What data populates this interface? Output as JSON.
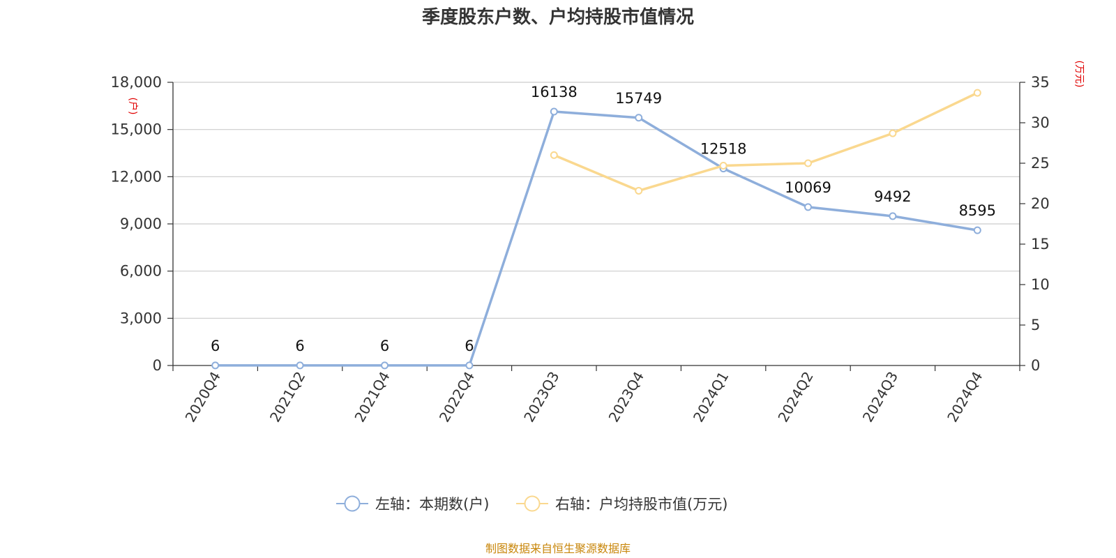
{
  "chart_data": {
    "type": "line",
    "title": "季度股东户数、户均持股市值情况",
    "categories": [
      "2020Q4",
      "2021Q2",
      "2021Q4",
      "2022Q4",
      "2023Q3",
      "2023Q4",
      "2024Q1",
      "2024Q2",
      "2024Q3",
      "2024Q4"
    ],
    "left_axis": {
      "unit": "(户)",
      "ylim": [
        0,
        18000
      ],
      "ticks": [
        0,
        3000,
        6000,
        9000,
        12000,
        15000,
        18000
      ],
      "tick_labels": [
        "0",
        "3,000",
        "6,000",
        "9,000",
        "12,000",
        "15,000",
        "18,000"
      ]
    },
    "right_axis": {
      "unit": "(万元)",
      "ylim": [
        0,
        35
      ],
      "ticks": [
        0,
        5,
        10,
        15,
        20,
        25,
        30,
        35
      ],
      "tick_labels": [
        "0",
        "5",
        "10",
        "15",
        "20",
        "25",
        "30",
        "35"
      ]
    },
    "series": [
      {
        "name": "左轴：本期数(户)",
        "axis": "left",
        "color": "#8eaedb",
        "values": [
          6,
          6,
          6,
          6,
          16138,
          15749,
          12518,
          10069,
          9492,
          8595
        ],
        "data_labels": [
          "6",
          "6",
          "6",
          "6",
          "16138",
          "15749",
          "12518",
          "10069",
          "9492",
          "8595"
        ]
      },
      {
        "name": "右轴：户均持股市值(万元)",
        "axis": "right",
        "color": "#fad88f",
        "values": [
          null,
          null,
          null,
          null,
          26.0,
          21.6,
          24.7,
          25.0,
          28.7,
          33.7
        ]
      }
    ],
    "grid": true,
    "legend_position": "bottom-center"
  },
  "footer": {
    "source": "制图数据来自恒生聚源数据库"
  }
}
